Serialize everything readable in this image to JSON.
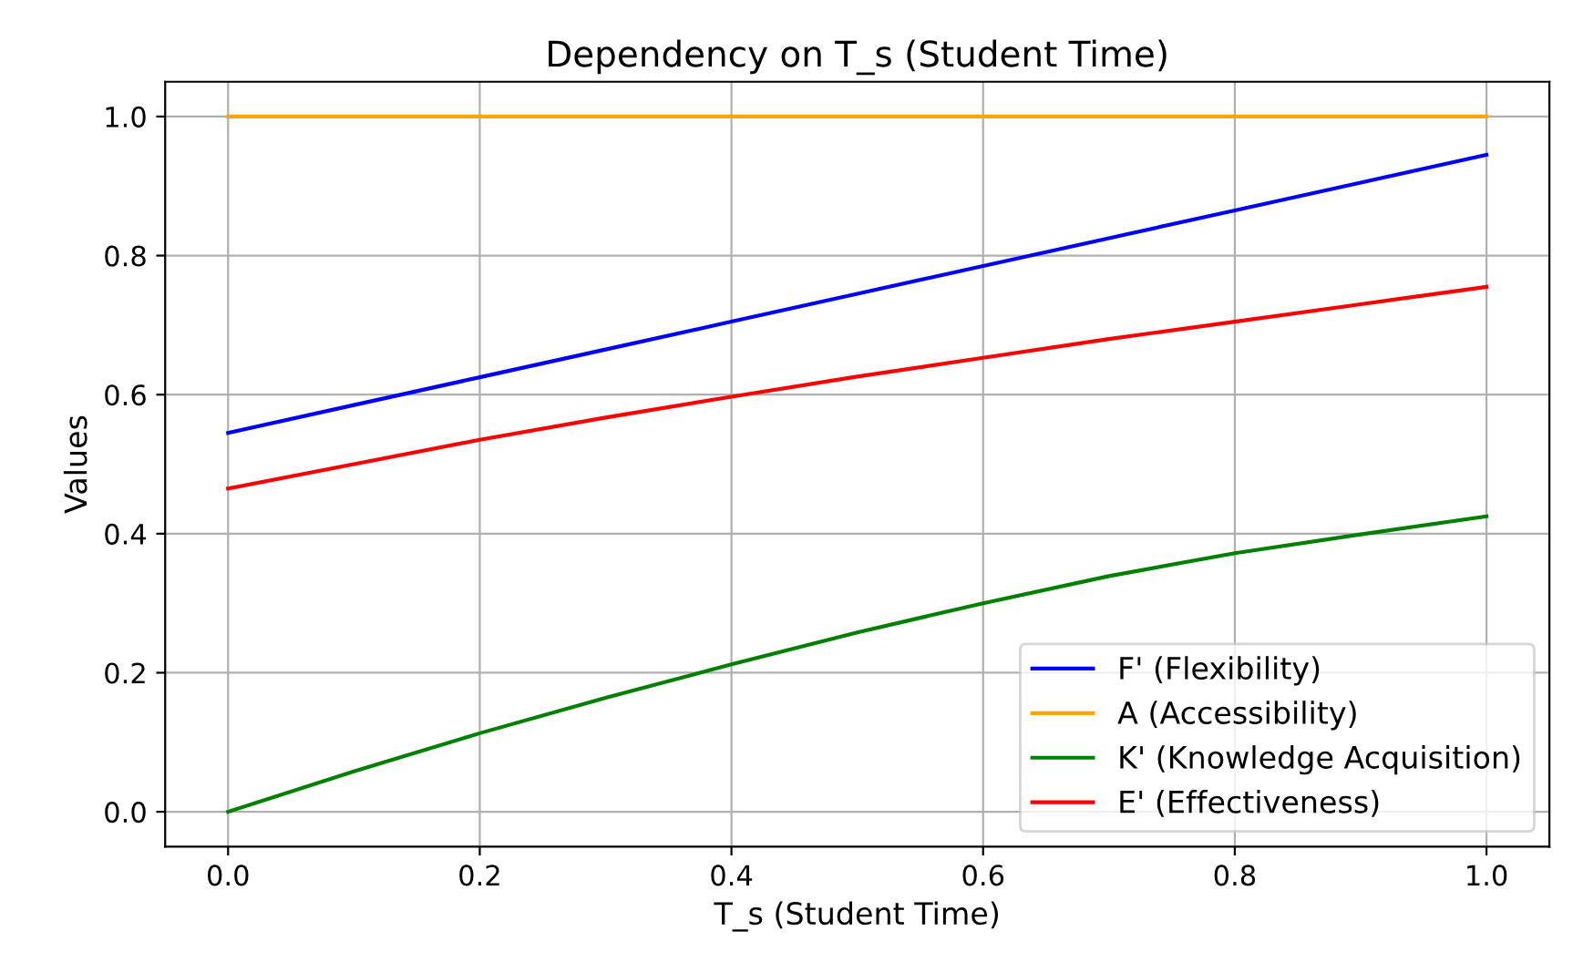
{
  "chart_data": {
    "type": "line",
    "title": "Dependency on T_s (Student Time)",
    "xlabel": "T_s (Student Time)",
    "ylabel": "Values",
    "x": [
      0,
      0.1,
      0.2,
      0.3,
      0.4,
      0.5,
      0.6,
      0.7,
      0.8,
      0.9,
      1.0
    ],
    "series": [
      {
        "name": "F' (Flexibility)",
        "color": "#0000ff",
        "values": [
          0.545,
          0.585,
          0.625,
          0.665,
          0.705,
          0.745,
          0.785,
          0.825,
          0.865,
          0.905,
          0.945
        ]
      },
      {
        "name": "A (Accessibility)",
        "color": "#ffa500",
        "values": [
          1.0,
          1.0,
          1.0,
          1.0,
          1.0,
          1.0,
          1.0,
          1.0,
          1.0,
          1.0,
          1.0
        ]
      },
      {
        "name": "K' (Knowledge Acquisition)",
        "color": "#008000",
        "values": [
          0,
          0.058,
          0.113,
          0.164,
          0.212,
          0.258,
          0.3,
          0.339,
          0.372,
          0.399,
          0.425
        ]
      },
      {
        "name": "E' (Effectiveness)",
        "color": "#ff0000",
        "values": [
          0.465,
          0.5,
          0.535,
          0.567,
          0.597,
          0.626,
          0.653,
          0.68,
          0.705,
          0.73,
          0.755
        ]
      }
    ],
    "xlim": [
      -0.05,
      1.05
    ],
    "ylim": [
      -0.05,
      1.05
    ],
    "xticks": [
      {
        "value": 0,
        "label": "0.0"
      },
      0.2,
      0.4,
      0.6,
      0.8,
      {
        "value": 1,
        "label": "1.0"
      }
    ],
    "yticks": [
      {
        "value": 0,
        "label": "0.0"
      },
      0.2,
      0.4,
      0.6,
      0.8,
      {
        "value": 1,
        "label": "1.0"
      }
    ],
    "grid": true,
    "legend": "bottom right"
  }
}
